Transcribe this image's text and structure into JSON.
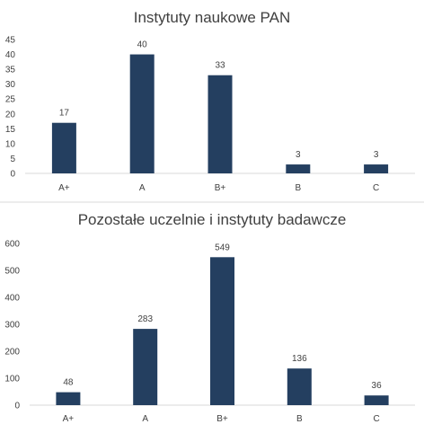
{
  "chart_data": [
    {
      "type": "bar",
      "title": "Instytuty naukowe PAN",
      "categories": [
        "A+",
        "A",
        "B+",
        "B",
        "C"
      ],
      "values": [
        17,
        40,
        33,
        3,
        3
      ],
      "ylim": [
        0,
        45
      ],
      "yticks": [
        0,
        5,
        10,
        15,
        20,
        25,
        30,
        35,
        40,
        45
      ],
      "grid": false,
      "legend": "none",
      "bar_color": "#243f60"
    },
    {
      "type": "bar",
      "title": "Pozostałe uczelnie i instytuty badawcze",
      "categories": [
        "A+",
        "A",
        "B+",
        "B",
        "C"
      ],
      "values": [
        48,
        283,
        549,
        136,
        36
      ],
      "ylim": [
        0,
        600
      ],
      "yticks": [
        0,
        100,
        200,
        300,
        400,
        500,
        600
      ],
      "grid": false,
      "legend": "none",
      "bar_color": "#243f60"
    }
  ]
}
